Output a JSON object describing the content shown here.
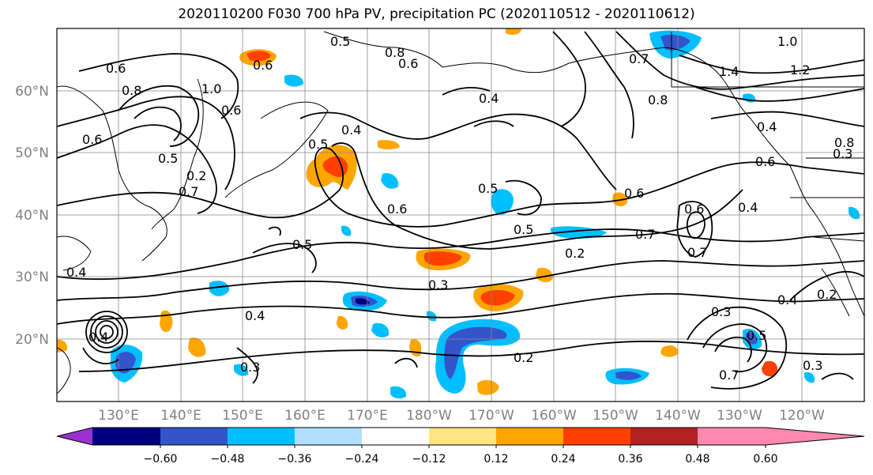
{
  "title": "2020110200 F030 700 hPa PV, precipitation PC (2020110512 - 2020110612)",
  "map": {
    "lat_labels": [
      "60°N",
      "50°N",
      "40°N",
      "30°N",
      "20°N"
    ],
    "lon_labels": [
      "130°E",
      "140°E",
      "150°E",
      "160°E",
      "170°E",
      "180°W",
      "170°W",
      "160°W",
      "150°W",
      "140°W",
      "130°W",
      "120°W"
    ],
    "contour_labels": [
      "0.5",
      "0.8",
      "0.6",
      "0.6",
      "0.6",
      "0.8",
      "1.0",
      "0.5",
      "0.7",
      "0.4",
      "0.5",
      "0.4",
      "0.4",
      "0.5",
      "0.6",
      "0.8",
      "0.7",
      "1.0",
      "1.4",
      "1.2",
      "0.8",
      "0.4",
      "0.6",
      "0.6",
      "0.6",
      "0.7",
      "0.6",
      "0.7",
      "0.4",
      "0.5",
      "0.5",
      "0.2",
      "0.3",
      "0.4",
      "0.4",
      "0.3",
      "0.2",
      "0.3",
      "0.5",
      "0.3",
      "0.4",
      "0.2",
      "0.3",
      "0.2",
      "0.7",
      "0.6"
    ]
  },
  "colorbar": {
    "ticks": [
      "−0.60",
      "−0.48",
      "−0.36",
      "−0.24",
      "−0.12",
      "0.12",
      "0.24",
      "0.36",
      "0.48",
      "0.60"
    ],
    "colors": [
      "#9b30d0",
      "#00007f",
      "#3355cc",
      "#00bfff",
      "#b0e0ff",
      "#ffffff",
      "#ffe680",
      "#ffa500",
      "#ff4000",
      "#b22222",
      "#ff88b0"
    ]
  }
}
